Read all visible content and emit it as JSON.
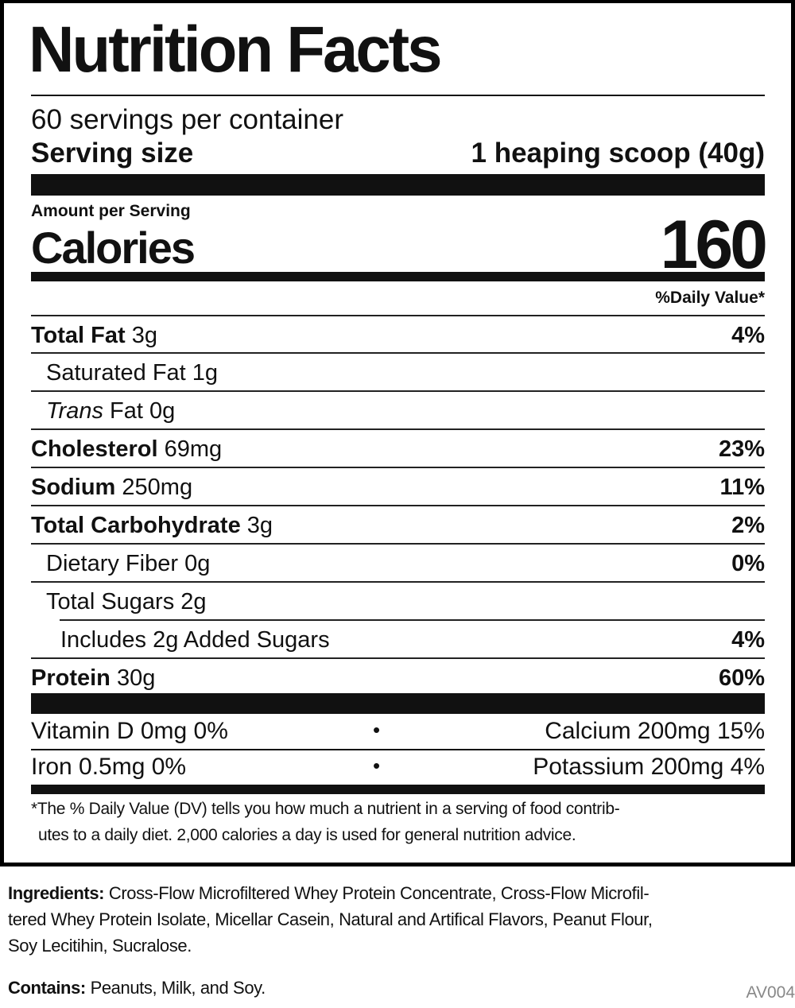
{
  "title": "Nutrition Facts",
  "servings_per_container": "60 servings per container",
  "serving_size_label": "Serving size",
  "serving_size_value": "1 heaping scoop (40g)",
  "amount_per_serving": "Amount per Serving",
  "calories_label": "Calories",
  "calories_value": "160",
  "daily_value_header": "%Daily Value*",
  "nutrients": [
    {
      "name": "Total Fat",
      "amount": "3g",
      "dv": "4%"
    },
    {
      "name": "Saturated Fat",
      "amount": "1g",
      "dv": ""
    },
    {
      "name": "Trans",
      "name_rest": "Fat",
      "amount": "0g",
      "dv": ""
    },
    {
      "name": "Cholesterol",
      "amount": "69mg",
      "dv": "23%"
    },
    {
      "name": "Sodium",
      "amount": "250mg",
      "dv": "11%"
    },
    {
      "name": "Total Carbohydrate",
      "amount": "3g",
      "dv": "2%"
    },
    {
      "name": "Dietary Fiber",
      "amount": "0g",
      "dv": "0%"
    },
    {
      "name": "Total Sugars",
      "amount": "2g",
      "dv": ""
    },
    {
      "name": "Includes 2g Added Sugars",
      "amount": "",
      "dv": "4%"
    },
    {
      "name": "Protein",
      "amount": "30g",
      "dv": "60%"
    }
  ],
  "vitamins": [
    {
      "left": "Vitamin D 0mg 0%",
      "bullet": "•",
      "right": "Calcium 200mg 15%"
    },
    {
      "left": "Iron 0.5mg 0%",
      "bullet": "•",
      "right": "Potassium 200mg 4%"
    }
  ],
  "footnote_line1": "*The % Daily Value (DV) tells you how much a nutrient in a serving of food contrib-",
  "footnote_line2": "utes to a daily diet. 2,000 calories a day is used for general nutrition advice.",
  "ingredients_label": "Ingredients:",
  "ingredients_line1": "Cross-Flow Microfiltered Whey Protein Concentrate, Cross-Flow Microfil-",
  "ingredients_line2": "tered Whey Protein Isolate, Micellar Casein, Natural and Artifical Flavors, Peanut Flour,",
  "ingredients_line3": "Soy Lecitihin, Sucralose.",
  "contains_label": "Contains:",
  "contains_value": "Peanuts, Milk, and Soy.",
  "code": "AV004"
}
